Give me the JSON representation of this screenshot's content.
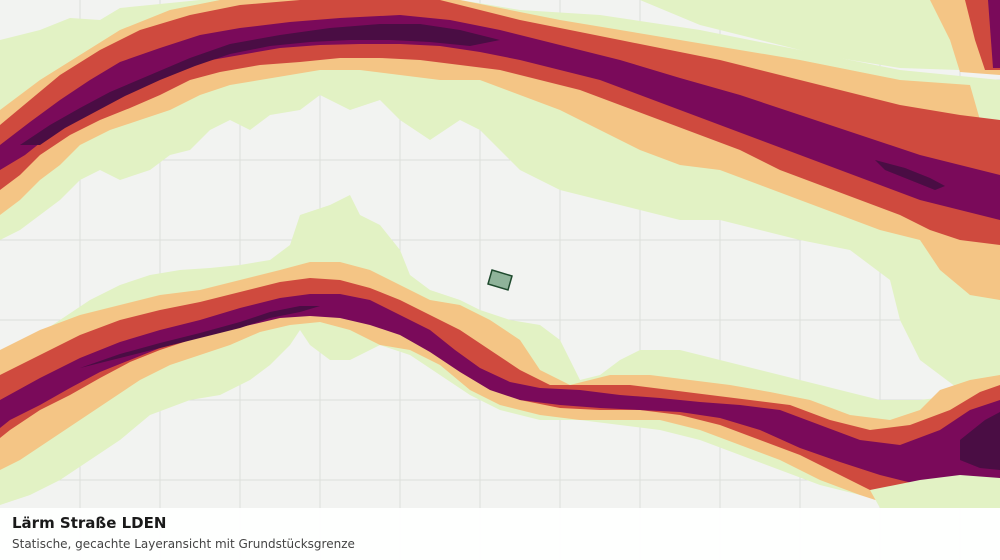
{
  "caption": {
    "title": "Lärm Straße LDEN",
    "subtitle": "Statische, gecachte Layeransicht mit Grundstücksgrenze"
  },
  "map": {
    "layer": "road-noise-lden",
    "background_color": "#f2f3f1",
    "grid_line_color": "#dcdfdb",
    "noise_band_colors": [
      "#e2f2c4",
      "#f4c585",
      "#cf4a3e",
      "#7a0a5a",
      "#4a0d44"
    ],
    "parcel": {
      "fill": "#8fb39a",
      "stroke": "#1f4a2e"
    }
  }
}
